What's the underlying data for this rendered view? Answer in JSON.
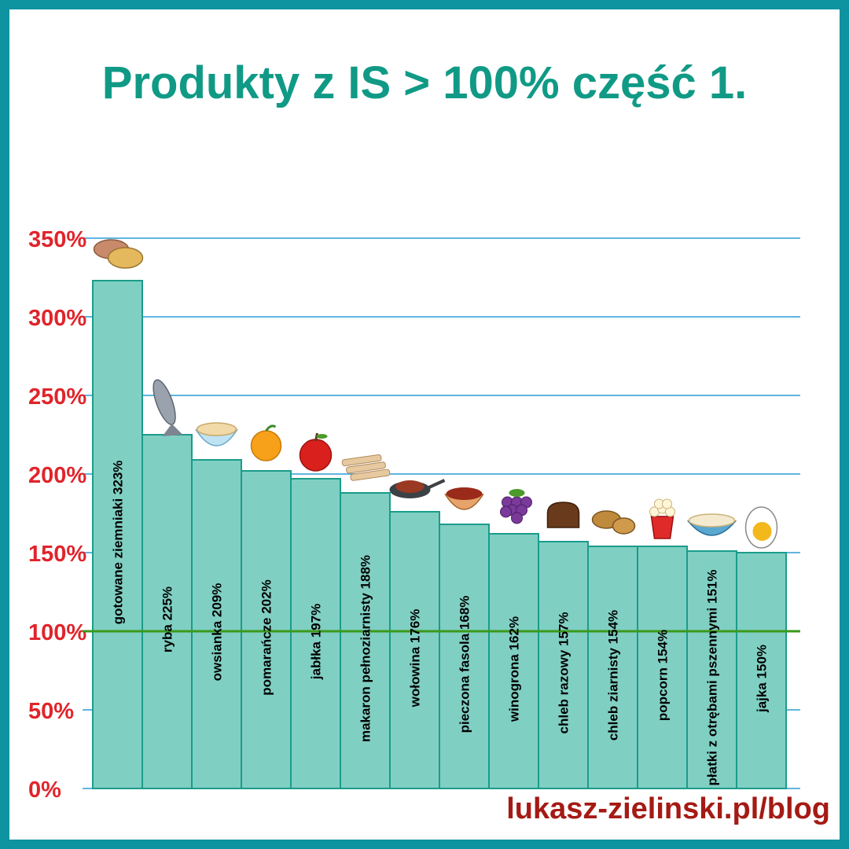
{
  "title": "Produkty z IS > 100% część 1.",
  "footer": "lukasz-zielinski.pl/blog",
  "colors": {
    "frame": "#0e93a0",
    "title": "#109a86",
    "tick": "#e0242b",
    "bar_fill": "#80cfc3",
    "bar_stroke": "#1a9c8a",
    "grid": "#2b9bd6",
    "reference": "#3a9a1a",
    "footer": "#a51a14"
  },
  "chart_data": {
    "type": "bar",
    "title": "Produkty z IS > 100% część 1.",
    "xlabel": "",
    "ylabel": "",
    "ylim": [
      0,
      350
    ],
    "yticks": [
      "0%",
      "50%",
      "100%",
      "150%",
      "200%",
      "250%",
      "300%",
      "350%"
    ],
    "ytick_values": [
      0,
      50,
      100,
      150,
      200,
      250,
      300,
      350
    ],
    "grid": true,
    "reference_line": 100,
    "categories": [
      "gotowane ziemniaki",
      "ryba",
      "owsianka",
      "pomarańcze",
      "jabłka",
      "makaron pełnoziarnisty",
      "wołowina",
      "pieczona fasola",
      "winogrona",
      "chleb razowy",
      "chleb ziarnisty",
      "popcorn",
      "płatki z otrębami pszennymi",
      "jajka"
    ],
    "values": [
      323,
      225,
      209,
      202,
      197,
      188,
      176,
      168,
      162,
      157,
      154,
      154,
      151,
      150
    ],
    "labels": [
      "gotowane ziemniaki 323%",
      "ryba 225%",
      "owsianka 209%",
      "pomarańcze 202%",
      "jabłka 197%",
      "makaron pełnoziarnisty 188%",
      "wołowina 176%",
      "pieczona fasola 168%",
      "winogrona 162%",
      "chleb razowy 157%",
      "chleb ziarnisty 154%",
      "popcorn 154%",
      "płatki z otrębami pszennymi 151%",
      "jajka 150%"
    ],
    "icons": [
      "potato-icon",
      "fish-icon",
      "oatmeal-icon",
      "orange-icon",
      "apple-icon",
      "pasta-icon",
      "beef-icon",
      "beans-icon",
      "grapes-icon",
      "rye-bread-icon",
      "grain-bread-icon",
      "popcorn-icon",
      "cereal-bowl-icon",
      "egg-icon"
    ]
  }
}
